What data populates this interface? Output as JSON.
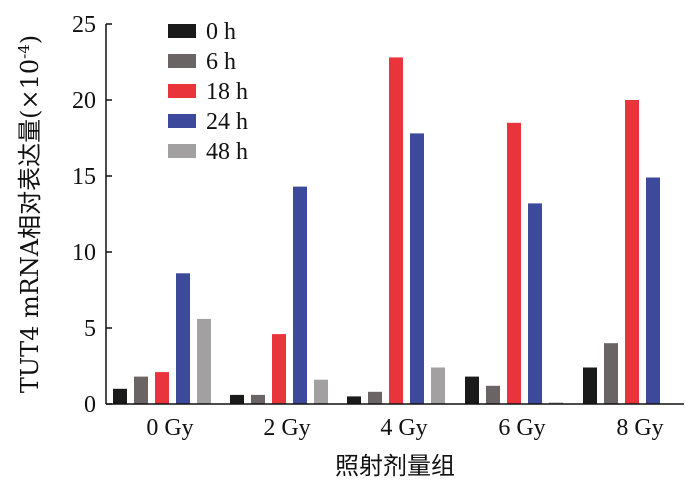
{
  "chart_data": {
    "type": "bar",
    "categories": [
      "0 Gy",
      "2 Gy",
      "4 Gy",
      "6 Gy",
      "8 Gy"
    ],
    "series": [
      {
        "name": "0 h",
        "color": "#1a1a1a",
        "values": [
          1.0,
          0.6,
          0.5,
          1.8,
          2.4
        ]
      },
      {
        "name": "6 h",
        "color": "#6b6464",
        "values": [
          1.8,
          0.6,
          0.8,
          1.2,
          4.0
        ]
      },
      {
        "name": "18 h",
        "color": "#e8343a",
        "values": [
          2.1,
          4.6,
          22.8,
          18.5,
          20.0
        ]
      },
      {
        "name": "24 h",
        "color": "#3d4a9c",
        "values": [
          8.6,
          14.3,
          17.8,
          13.2,
          14.9
        ]
      },
      {
        "name": "48 h",
        "color": "#a3a0a2",
        "values": [
          5.6,
          1.6,
          2.4,
          0.1,
          0.0
        ]
      }
    ],
    "xlabel": "照射剂量组",
    "ylabel_main": "TUT4 mRNA相对表达量(×10",
    "ylabel_exp": "-4",
    "ylabel_close": ")",
    "ylim": [
      0,
      25
    ],
    "yticks": [
      "0",
      "5",
      "10",
      "15",
      "20",
      "25"
    ],
    "legend_position": "top-left",
    "grid": false
  }
}
